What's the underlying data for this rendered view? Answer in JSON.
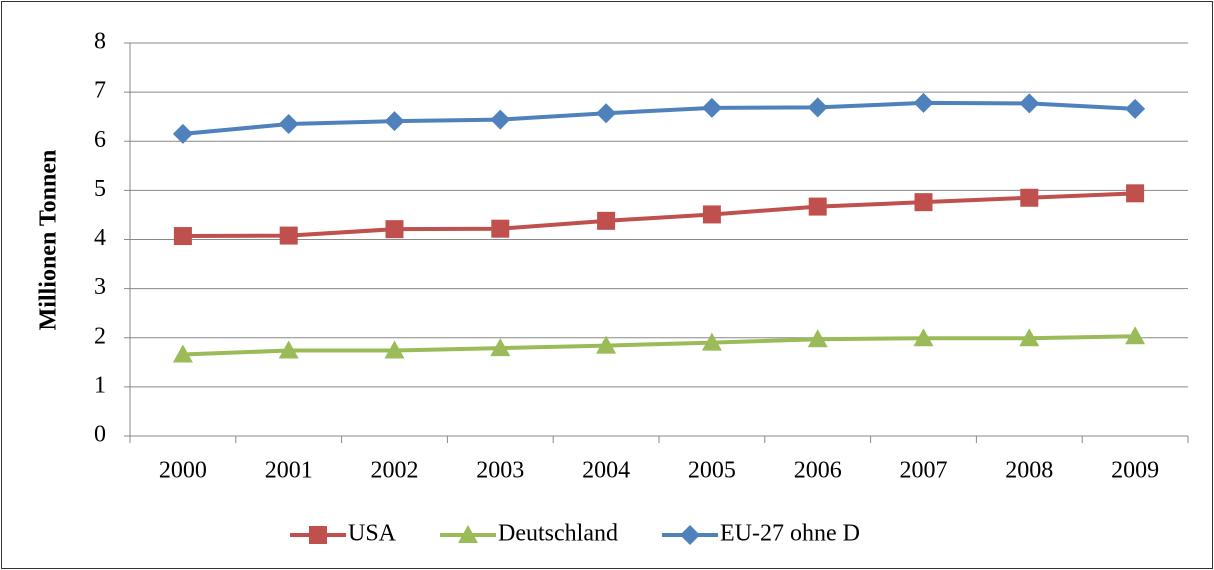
{
  "chart_data": {
    "type": "line",
    "y_label": "Millionen Tonnen",
    "categories": [
      "2000",
      "2001",
      "2002",
      "2003",
      "2004",
      "2005",
      "2006",
      "2007",
      "2008",
      "2009"
    ],
    "series": [
      {
        "name": "USA",
        "color": "#c0504d",
        "marker": "square",
        "values": [
          4.07,
          4.08,
          4.21,
          4.22,
          4.38,
          4.51,
          4.67,
          4.76,
          4.85,
          4.94
        ]
      },
      {
        "name": "Deutschland",
        "color": "#9bbb59",
        "marker": "triangle",
        "values": [
          1.66,
          1.74,
          1.74,
          1.79,
          1.84,
          1.9,
          1.97,
          1.99,
          1.99,
          2.03
        ]
      },
      {
        "name": "EU-27 ohne D",
        "color": "#4f81bd",
        "marker": "diamond",
        "values": [
          6.15,
          6.35,
          6.41,
          6.44,
          6.57,
          6.68,
          6.69,
          6.78,
          6.77,
          6.66
        ]
      }
    ],
    "ylim": [
      0,
      8
    ],
    "yticks": [
      0,
      1,
      2,
      3,
      4,
      5,
      6,
      7,
      8
    ],
    "grid": true,
    "legend": "bottom"
  }
}
